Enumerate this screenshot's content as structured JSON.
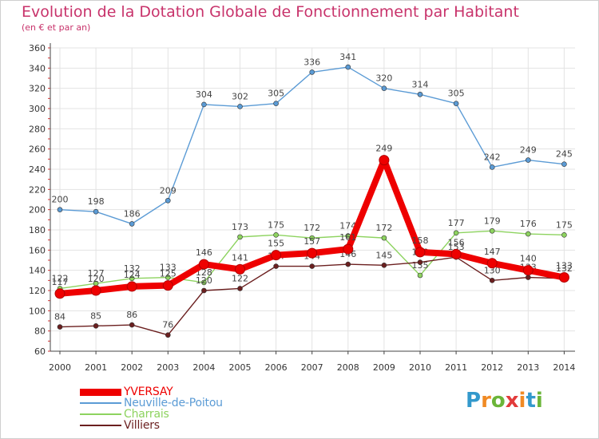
{
  "header": {
    "title": "Evolution de la Dotation Globale de Fonctionnement par Habitant",
    "subtitle": "(en € et par an)"
  },
  "brand": {
    "letters": [
      "P",
      "r",
      "o",
      "x",
      "i",
      "t",
      "i"
    ],
    "colors": [
      "#3399cc",
      "#f08a24",
      "#6bb539",
      "#e23b3b",
      "#f08a24",
      "#3399cc",
      "#6bb539"
    ]
  },
  "chart_data": {
    "type": "line",
    "title": "Evolution de la Dotation Globale de Fonctionnement par Habitant",
    "subtitle": "(en € et par an)",
    "x": [
      "2000",
      "2001",
      "2002",
      "2003",
      "2004",
      "2005",
      "2006",
      "2007",
      "2008",
      "2009",
      "2010",
      "2011",
      "2012",
      "2013",
      "2014"
    ],
    "ylim": [
      60,
      360
    ],
    "yticks": [
      60,
      80,
      100,
      120,
      140,
      160,
      180,
      200,
      220,
      240,
      260,
      280,
      300,
      320,
      340,
      360
    ],
    "grid": true,
    "legend": "bottom-left",
    "series": [
      {
        "name": "Neuville-de-Poitou",
        "color": "#5b9bd5",
        "values": [
          200,
          198,
          186,
          209,
          304,
          302,
          305,
          336,
          341,
          320,
          314,
          305,
          242,
          249,
          245
        ]
      },
      {
        "name": "Charrais",
        "color": "#8dd35f",
        "values": [
          122,
          127,
          132,
          133,
          128,
          173,
          175,
          172,
          174,
          172,
          135,
          177,
          179,
          176,
          175
        ]
      },
      {
        "name": "Villiers",
        "color": "#6b1f1f",
        "values": [
          84,
          85,
          86,
          76,
          120,
          122,
          144,
          144,
          146,
          145,
          148,
          153,
          130,
          133,
          132
        ]
      },
      {
        "name": "YVERSAY",
        "color": "#ee0000",
        "values": [
          117,
          120,
          124,
          125,
          146,
          141,
          155,
          157,
          161,
          249,
          158,
          156,
          147,
          140,
          133
        ]
      }
    ]
  }
}
